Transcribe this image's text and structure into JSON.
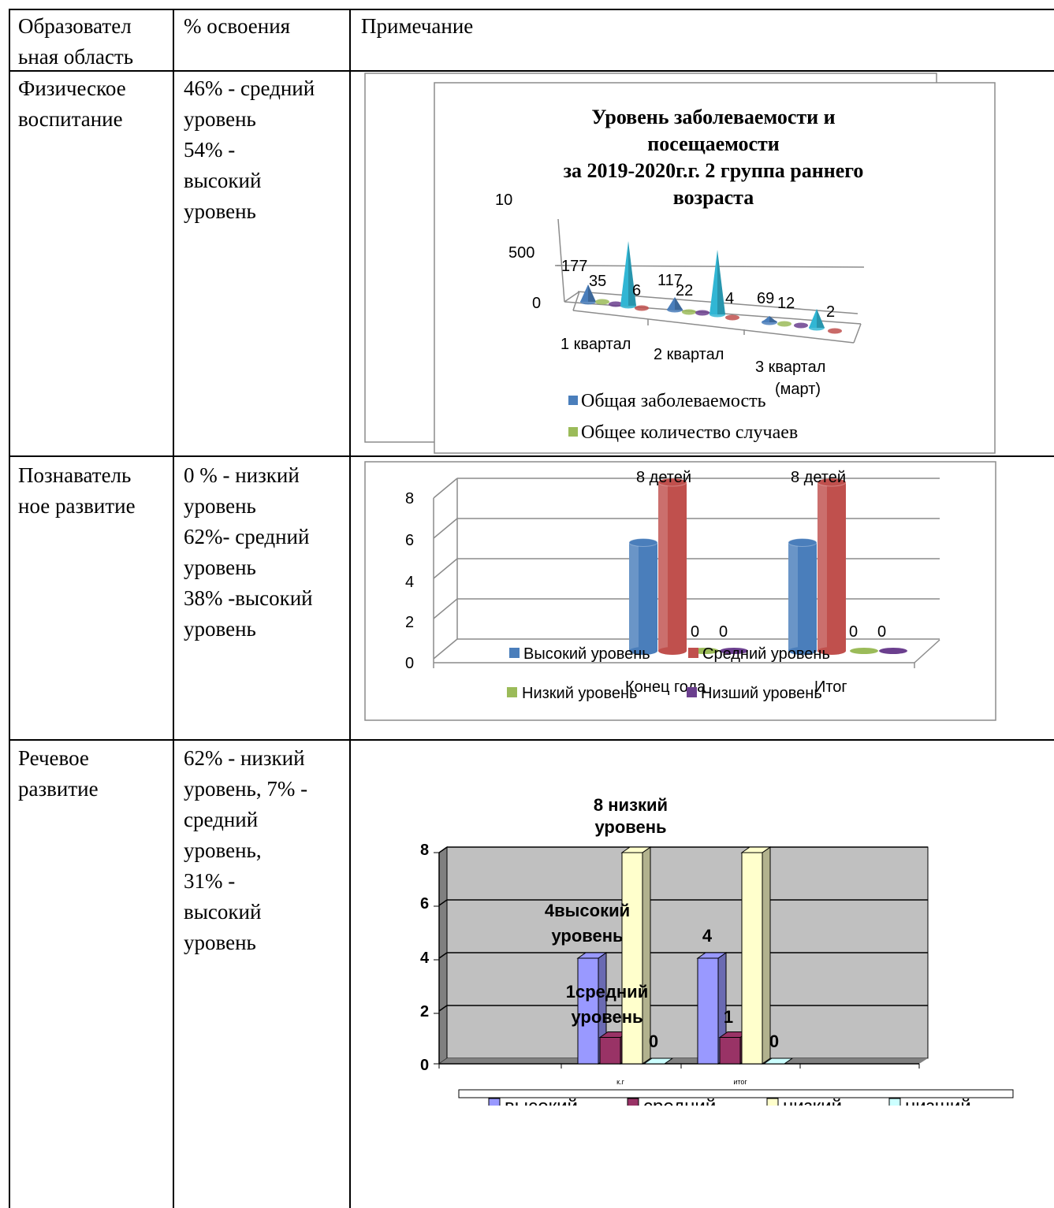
{
  "table": {
    "headers": [
      "Образовател\nьная область",
      "% освоения",
      "Примечание"
    ],
    "rows": [
      {
        "area": "Физическое\nвоспитание",
        "percent": "46% - средний\nуровень\n54% -\nвысокий\nуровень"
      },
      {
        "area": "Познаватель\nное развитие",
        "percent": "0 % - низкий\nуровень\n62%- средний\nуровень\n38% -высокий\nуровень"
      },
      {
        "area": "Речевое\nразвитие",
        "percent": "62% - низкий\nуровень, 7% -\nсредний\nуровень,\n31% -\nвысокий\nуровень"
      }
    ]
  },
  "colors": {
    "blue": "#4A7EBB",
    "cyan": "#31B6D4",
    "green": "#9BBB59",
    "purple": "#6B3F8E",
    "red": "#C0504D",
    "lavender": "#9999FF",
    "maroon": "#993366",
    "lightyellow": "#FFFFCC",
    "lightcyan": "#CCFFFF",
    "grayplot": "#C0C0C0"
  },
  "chart_data": [
    {
      "type": "bar",
      "title": "Уровень заболеваемости и посещаемости\nза 2019-2020г.г. 2 группа раннего возраста",
      "categories": [
        "1 квартал",
        "2 квартал",
        "3 квартал (март)"
      ],
      "axis_ticks": [
        "10",
        "500",
        "0"
      ],
      "series": [
        {
          "name": "Общая заболеваемость",
          "values": [
            177,
            117,
            69
          ]
        },
        {
          "name": "Общее количество случаев",
          "values": [
            35,
            22,
            12
          ]
        },
        {
          "name": "",
          "values": [
            null,
            null,
            null
          ]
        },
        {
          "name": "",
          "values": [
            6,
            4,
            2
          ]
        },
        {
          "name": "",
          "values": [
            null,
            null,
            null
          ]
        }
      ],
      "series_colors": [
        "blue",
        "green",
        "purple",
        "cyan",
        "red"
      ],
      "data_labels": [
        "177",
        "35",
        "6",
        "117",
        "22",
        "4",
        "69",
        "12",
        "2"
      ],
      "legend_position": "bottom"
    },
    {
      "type": "bar",
      "categories": [
        "Конец года",
        "Итог"
      ],
      "ylim": [
        0,
        8
      ],
      "y_ticks": [
        "0",
        "2",
        "4",
        "6",
        "8"
      ],
      "series": [
        {
          "name": "Высокий уровень",
          "values": [
            5,
            5
          ]
        },
        {
          "name": "Средний уровень",
          "values": [
            8,
            8
          ]
        },
        {
          "name": "Низкий уровень",
          "values": [
            0,
            0
          ]
        },
        {
          "name": "Низший уровень",
          "values": [
            0,
            0
          ]
        }
      ],
      "data_labels": [
        "8 детей",
        "0",
        "0",
        "8 детей",
        "0",
        "0"
      ],
      "grid": true,
      "legend_position": "bottom"
    },
    {
      "type": "bar",
      "categories": [
        "к.г",
        "итог"
      ],
      "ylim": [
        0,
        8
      ],
      "y_ticks": [
        "0",
        "2",
        "4",
        "6",
        "8"
      ],
      "series": [
        {
          "name": "высокий",
          "values": [
            4,
            4
          ]
        },
        {
          "name": "средний",
          "values": [
            1,
            1
          ]
        },
        {
          "name": "низкий",
          "values": [
            8,
            8
          ]
        },
        {
          "name": "низший",
          "values": [
            0,
            0
          ]
        }
      ],
      "data_labels": [
        "8 низкий уровень",
        "4высокий уровень",
        "1средний уровень",
        "0",
        "4",
        "1",
        "0"
      ],
      "grid": true,
      "legend_position": "bottom"
    }
  ]
}
